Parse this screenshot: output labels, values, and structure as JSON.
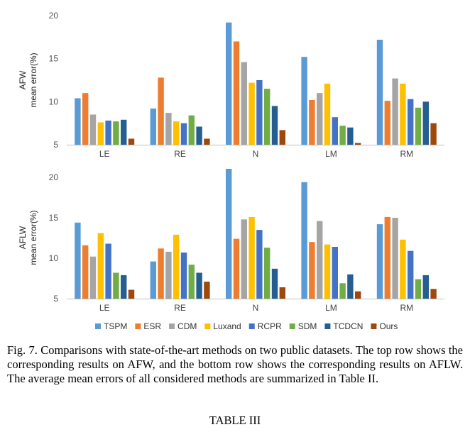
{
  "chart_data": [
    {
      "type": "bar",
      "ylabel_lines": [
        "AFW",
        "mean error(%)"
      ],
      "ylim": [
        5,
        20
      ],
      "yticks": [
        "5",
        "10",
        "15",
        "20"
      ],
      "categories": [
        "LE",
        "RE",
        "N",
        "LM",
        "RM"
      ],
      "series": [
        {
          "name": "TSPM",
          "values": [
            10.4,
            9.2,
            19.2,
            15.2,
            17.2
          ]
        },
        {
          "name": "ESR",
          "values": [
            11.0,
            12.8,
            17.0,
            10.2,
            10.1
          ]
        },
        {
          "name": "CDM",
          "values": [
            8.5,
            8.7,
            14.6,
            11.0,
            12.7
          ]
        },
        {
          "name": "Luxand",
          "values": [
            7.6,
            7.7,
            12.2,
            12.1,
            12.1
          ]
        },
        {
          "name": "RCPR",
          "values": [
            7.8,
            7.5,
            12.5,
            8.2,
            10.3
          ]
        },
        {
          "name": "SDM",
          "values": [
            7.7,
            8.4,
            11.5,
            7.2,
            9.3
          ]
        },
        {
          "name": "TCDCN",
          "values": [
            7.9,
            7.1,
            9.5,
            7.0,
            10.0
          ]
        },
        {
          "name": "Ours",
          "values": [
            5.7,
            5.7,
            6.7,
            5.2,
            7.5
          ]
        }
      ]
    },
    {
      "type": "bar",
      "ylabel_lines": [
        "AFLW",
        "mean error(%)"
      ],
      "ylim": [
        5,
        22
      ],
      "yticks": [
        "5",
        "10",
        "15",
        "20"
      ],
      "categories": [
        "LE",
        "RE",
        "N",
        "LM",
        "RM"
      ],
      "series": [
        {
          "name": "TSPM",
          "values": [
            14.4,
            9.6,
            21.8,
            19.4,
            14.2
          ]
        },
        {
          "name": "ESR",
          "values": [
            11.6,
            11.2,
            12.4,
            12.0,
            15.1
          ]
        },
        {
          "name": "CDM",
          "values": [
            10.2,
            10.8,
            14.8,
            14.6,
            15.0
          ]
        },
        {
          "name": "Luxand",
          "values": [
            13.1,
            12.9,
            15.1,
            11.7,
            12.3
          ]
        },
        {
          "name": "RCPR",
          "values": [
            11.8,
            10.7,
            13.5,
            11.4,
            10.9
          ]
        },
        {
          "name": "SDM",
          "values": [
            8.2,
            9.2,
            11.3,
            6.9,
            7.4
          ]
        },
        {
          "name": "TCDCN",
          "values": [
            7.9,
            8.2,
            8.7,
            8.0,
            7.9
          ]
        },
        {
          "name": "Ours",
          "values": [
            6.1,
            7.1,
            6.4,
            5.9,
            6.2
          ]
        }
      ]
    }
  ],
  "legend": [
    "TSPM",
    "ESR",
    "CDM",
    "Luxand",
    "RCPR",
    "SDM",
    "TCDCN",
    "Ours"
  ],
  "colors": {
    "TSPM": "#5b9bd5",
    "ESR": "#ed7d31",
    "CDM": "#a5a5a5",
    "Luxand": "#ffc000",
    "RCPR": "#4472c4",
    "SDM": "#70ad47",
    "TCDCN": "#255e91",
    "Ours": "#9e480e"
  },
  "caption": "Fig. 7.  Comparisons with state-of-the-art methods on two public datasets. The top row shows the corresponding results on AFW, and the bottom row shows the corresponding results on AFLW. The average mean errors of all considered methods are summarized in Table II.",
  "table_title": "TABLE III"
}
